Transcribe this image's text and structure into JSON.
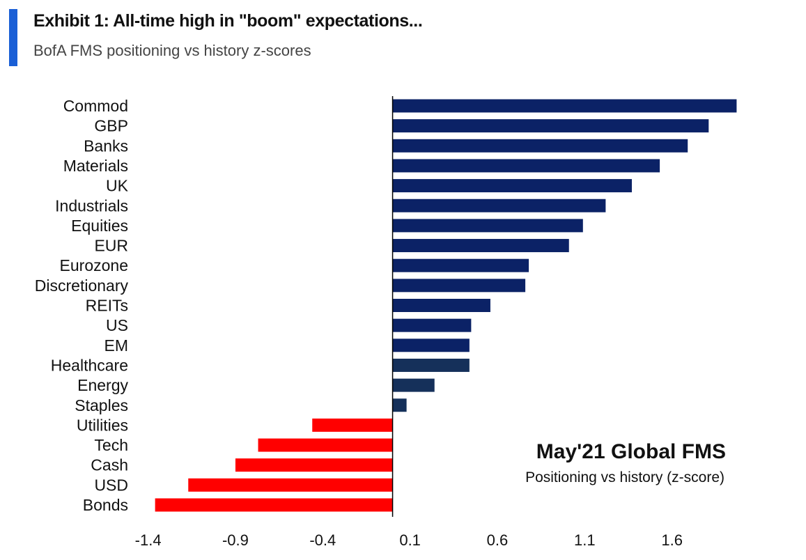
{
  "header": {
    "title": "Exhibit 1: All-time high in \"boom\" expectations...",
    "subtitle": "BofA FMS positioning vs history z-scores"
  },
  "colors": {
    "accent": "#1a5fd6",
    "positive": "#0b2266",
    "positive_dark": "#15305a",
    "negative": "#ff0000",
    "axis": "#000000"
  },
  "chart_data": {
    "type": "bar",
    "orientation": "horizontal",
    "categories": [
      "Commod",
      "GBP",
      "Banks",
      "Materials",
      "UK",
      "Industrials",
      "Equities",
      "EUR",
      "Eurozone",
      "Discretionary",
      "REITs",
      "US",
      "EM",
      "Healthcare",
      "Energy",
      "Staples",
      "Utilities",
      "Tech",
      "Cash",
      "USD",
      "Bonds"
    ],
    "values": [
      1.97,
      1.81,
      1.69,
      1.53,
      1.37,
      1.22,
      1.09,
      1.01,
      0.78,
      0.76,
      0.56,
      0.45,
      0.44,
      0.44,
      0.24,
      0.08,
      -0.46,
      -0.77,
      -0.9,
      -1.17,
      -1.36
    ],
    "xlim": [
      -1.55,
      2.1
    ],
    "xticks": [
      -1.4,
      -0.9,
      -0.4,
      0.1,
      0.6,
      1.1,
      1.6
    ],
    "xtick_labels": [
      "-1.4",
      "-0.9",
      "-0.4",
      "0.1",
      "0.6",
      "1.1",
      "1.6"
    ],
    "annotation": {
      "title": "May'21 Global FMS",
      "subtitle": "Positioning vs history (z-score)"
    },
    "grid": false
  }
}
